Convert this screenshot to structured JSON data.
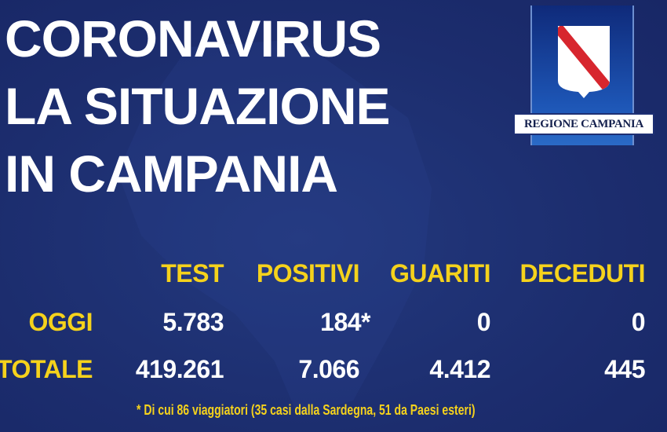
{
  "title": {
    "line1": "CORONAVIRUS",
    "line2": "LA SITUAZIONE",
    "line3": "IN CAMPANIA"
  },
  "logo": {
    "text": "REGIONE CAMPANIA"
  },
  "colors": {
    "background": "#1d2f73",
    "accent": "#f5d21c",
    "text": "#ffffff",
    "stripe": "#d7262e"
  },
  "table": {
    "headers": [
      "TEST",
      "POSITIVI",
      "GUARITI",
      "DECEDUTI"
    ],
    "rows": [
      {
        "label": "OGGI",
        "values": [
          "5.783",
          "184*",
          "0",
          "0"
        ]
      },
      {
        "label": "TOTALE",
        "values": [
          "419.261",
          "7.066",
          "4.412",
          "445"
        ]
      }
    ]
  },
  "footnote": "* Di cui 86 viaggiatori (35 casi dalla Sardegna, 51 da Paesi esteri)"
}
